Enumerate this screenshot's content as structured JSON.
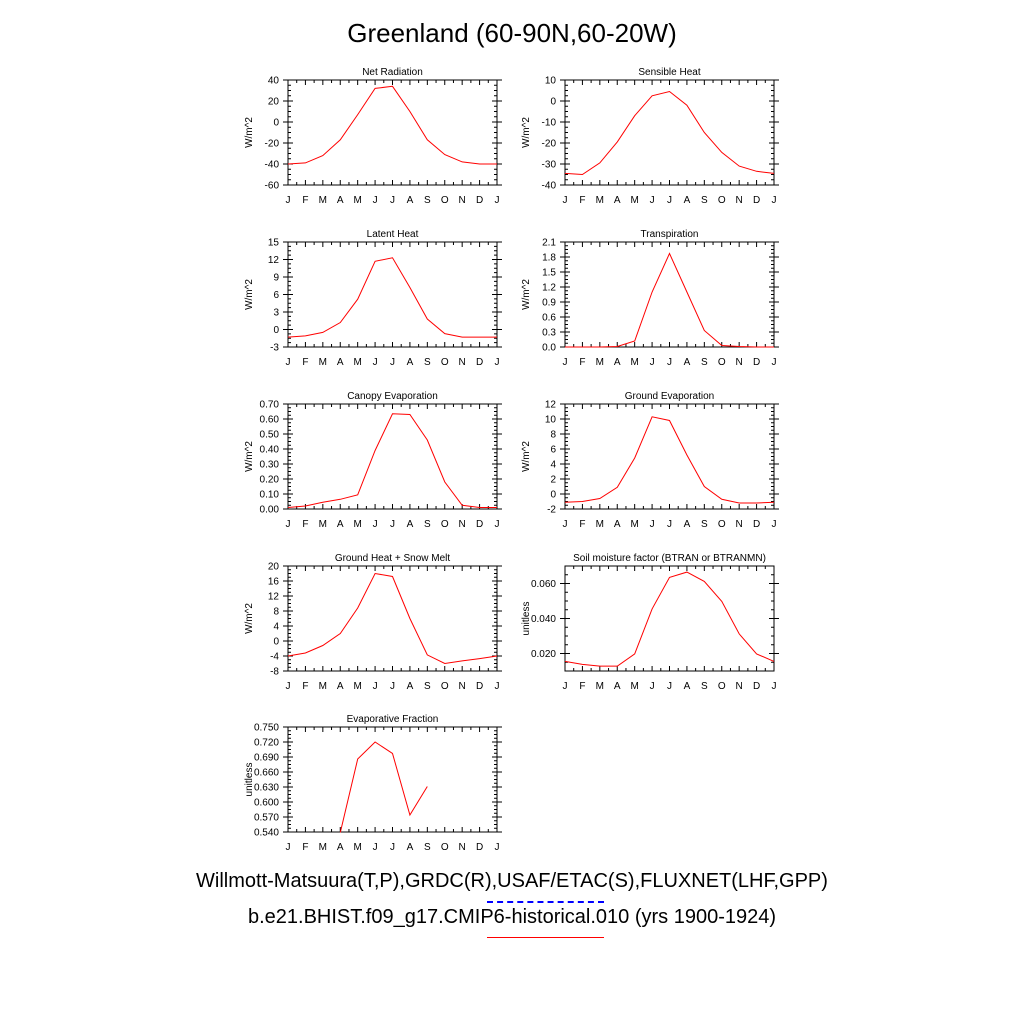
{
  "title": "Greenland (60-90N,60-20W)",
  "legend": {
    "obs_label": "Willmott-Matsuura(T,P),GRDC(R),USAF/ETAC(S),FLUXNET(LHF,GPP)",
    "obs_color": "#0000ff",
    "model_label": "b.e21.BHIST.f09_g17.CMIP6-historical.010 (yrs 1900-1924)",
    "model_color": "#ff0000"
  },
  "chart_data": [
    {
      "type": "line",
      "title": "Net Radiation",
      "ylabel": "W/m^2",
      "x": [
        "J",
        "F",
        "M",
        "A",
        "M",
        "J",
        "J",
        "A",
        "S",
        "O",
        "N",
        "D",
        "J"
      ],
      "ylim": [
        -60,
        40
      ],
      "yticks": [
        "-60",
        "-40",
        "-20",
        "0",
        "20",
        "40"
      ],
      "series": [
        {
          "color": "#ff0000",
          "values": [
            -40,
            -39,
            -32,
            -17,
            7,
            32,
            34,
            10,
            -17,
            -31,
            -38,
            -40,
            -40
          ]
        }
      ]
    },
    {
      "type": "line",
      "title": "Sensible Heat",
      "ylabel": "W/m^2",
      "x": [
        "J",
        "F",
        "M",
        "A",
        "M",
        "J",
        "J",
        "A",
        "S",
        "O",
        "N",
        "D",
        "J"
      ],
      "ylim": [
        -40,
        10
      ],
      "yticks": [
        "-40",
        "-30",
        "-20",
        "-10",
        "0",
        "10"
      ],
      "series": [
        {
          "color": "#ff0000",
          "values": [
            -34.5,
            -35,
            -29.5,
            -19.5,
            -7,
            2.5,
            4.5,
            -2,
            -15,
            -24.5,
            -31,
            -33.5,
            -34.5
          ]
        }
      ]
    },
    {
      "type": "line",
      "title": "Latent Heat",
      "ylabel": "W/m^2",
      "x": [
        "J",
        "F",
        "M",
        "A",
        "M",
        "J",
        "J",
        "A",
        "S",
        "O",
        "N",
        "D",
        "J"
      ],
      "ylim": [
        -3,
        15
      ],
      "yticks": [
        "-3",
        "0",
        "3",
        "6",
        "9",
        "12",
        "15"
      ],
      "series": [
        {
          "color": "#ff0000",
          "values": [
            -1.3,
            -1.1,
            -0.5,
            1.2,
            5.2,
            11.7,
            12.3,
            7.2,
            1.8,
            -0.7,
            -1.3,
            -1.3,
            -1.3
          ]
        }
      ]
    },
    {
      "type": "line",
      "title": "Transpiration",
      "ylabel": "W/m^2",
      "x": [
        "J",
        "F",
        "M",
        "A",
        "M",
        "J",
        "J",
        "A",
        "S",
        "O",
        "N",
        "D",
        "J"
      ],
      "ylim": [
        0,
        2.1
      ],
      "yticks": [
        "0.0",
        "0.3",
        "0.6",
        "0.9",
        "1.2",
        "1.5",
        "1.8",
        "2.1"
      ],
      "series": [
        {
          "color": "#ff0000",
          "values": [
            0,
            0,
            0,
            0.01,
            0.12,
            1.1,
            1.87,
            1.1,
            0.33,
            0.03,
            0.01,
            0,
            0
          ]
        }
      ]
    },
    {
      "type": "line",
      "title": "Canopy Evaporation",
      "ylabel": "W/m^2",
      "x": [
        "J",
        "F",
        "M",
        "A",
        "M",
        "J",
        "J",
        "A",
        "S",
        "O",
        "N",
        "D",
        "J"
      ],
      "ylim": [
        0,
        0.7
      ],
      "yticks": [
        "0.00",
        "0.10",
        "0.20",
        "0.30",
        "0.40",
        "0.50",
        "0.60",
        "0.70"
      ],
      "series": [
        {
          "color": "#ff0000",
          "values": [
            0.01,
            0.02,
            0.045,
            0.065,
            0.095,
            0.39,
            0.635,
            0.63,
            0.46,
            0.18,
            0.025,
            0.01,
            0.01
          ]
        }
      ]
    },
    {
      "type": "line",
      "title": "Ground Evaporation",
      "ylabel": "W/m^2",
      "x": [
        "J",
        "F",
        "M",
        "A",
        "M",
        "J",
        "J",
        "A",
        "S",
        "O",
        "N",
        "D",
        "J"
      ],
      "ylim": [
        -2,
        12
      ],
      "yticks": [
        "-2",
        "0",
        "2",
        "4",
        "6",
        "8",
        "10",
        "12"
      ],
      "series": [
        {
          "color": "#ff0000",
          "values": [
            -1.1,
            -1,
            -0.6,
            0.9,
            4.8,
            10.3,
            9.8,
            5.2,
            1,
            -0.7,
            -1.2,
            -1.2,
            -1.1
          ]
        }
      ]
    },
    {
      "type": "line",
      "title": "Ground Heat + Snow Melt",
      "ylabel": "W/m^2",
      "x": [
        "J",
        "F",
        "M",
        "A",
        "M",
        "J",
        "J",
        "A",
        "S",
        "O",
        "N",
        "D",
        "J"
      ],
      "ylim": [
        -8,
        20
      ],
      "yticks": [
        "-8",
        "-4",
        "0",
        "4",
        "8",
        "12",
        "16",
        "20"
      ],
      "series": [
        {
          "color": "#ff0000",
          "values": [
            -4,
            -3.2,
            -1.2,
            2,
            8.8,
            18,
            17.2,
            6,
            -3.7,
            -6,
            -5.3,
            -4.7,
            -4
          ]
        }
      ]
    },
    {
      "type": "line",
      "title": "Soil moisture factor (BTRAN or BTRANMN)",
      "ylabel": "unitless",
      "x": [
        "J",
        "F",
        "M",
        "A",
        "M",
        "J",
        "J",
        "A",
        "S",
        "O",
        "N",
        "D",
        "J"
      ],
      "ylim": [
        0.01,
        0.07
      ],
      "yticks": [
        "0.020",
        "0.040",
        "0.060"
      ],
      "ytick_values": [
        0.02,
        0.04,
        0.06
      ],
      "series": [
        {
          "color": "#ff0000",
          "values": [
            0.0155,
            0.0138,
            0.0128,
            0.0128,
            0.0198,
            0.0455,
            0.0635,
            0.0665,
            0.0612,
            0.0498,
            0.0312,
            0.0198,
            0.0155
          ]
        }
      ]
    },
    {
      "type": "line",
      "title": "Evaporative Fraction",
      "ylabel": "unitless",
      "x": [
        "J",
        "F",
        "M",
        "A",
        "M",
        "J",
        "J",
        "A",
        "S",
        "O",
        "N",
        "D",
        "J"
      ],
      "ylim": [
        0.54,
        0.75
      ],
      "yticks": [
        "0.540",
        "0.570",
        "0.600",
        "0.630",
        "0.660",
        "0.690",
        "0.720",
        "0.750"
      ],
      "series": [
        {
          "color": "#ff0000",
          "values": [
            null,
            null,
            null,
            0.539,
            0.686,
            0.72,
            0.697,
            0.574,
            0.631,
            null,
            null,
            null,
            null
          ]
        }
      ]
    }
  ]
}
